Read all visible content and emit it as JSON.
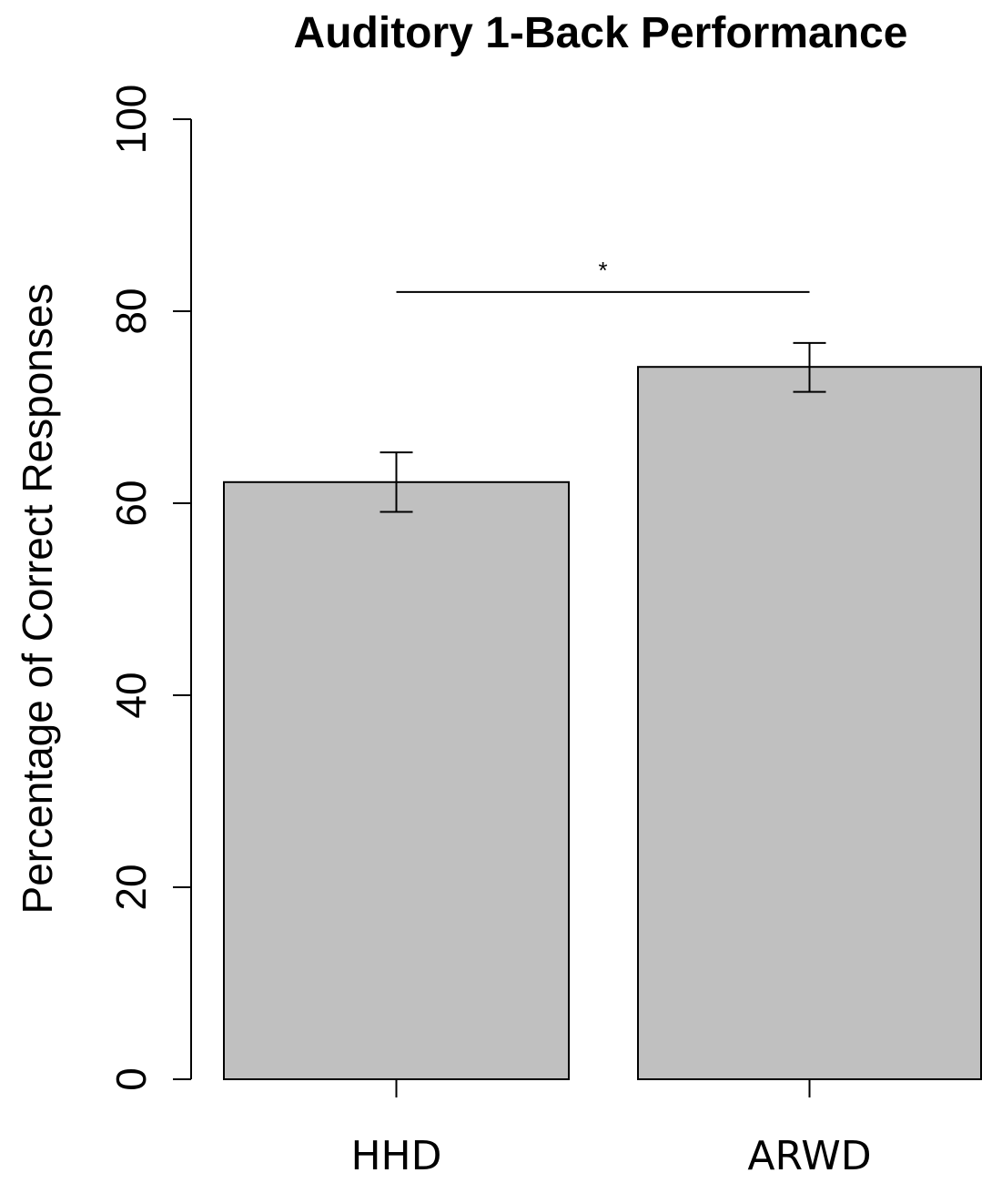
{
  "chart_data": {
    "type": "bar",
    "title": "Auditory 1-Back Performance",
    "xlabel": "",
    "ylabel": "Percentage of Correct Responses",
    "categories": [
      "HHD",
      "ARWD"
    ],
    "values": [
      62.2,
      74.2
    ],
    "error_low": [
      59.1,
      71.6
    ],
    "error_high": [
      65.3,
      76.7
    ],
    "ylim": [
      0,
      100
    ],
    "yticks": [
      0,
      20,
      40,
      60,
      80,
      100
    ],
    "ytick_labels": [
      "0",
      "20",
      "40",
      "60",
      "80",
      "100"
    ],
    "grid": false,
    "significance": {
      "from": "HHD",
      "to": "ARWD",
      "level": 82,
      "label": "*"
    },
    "colors": {
      "bar_fill": "#c0c0c0",
      "bar_stroke": "#000000",
      "axis": "#000000"
    }
  }
}
